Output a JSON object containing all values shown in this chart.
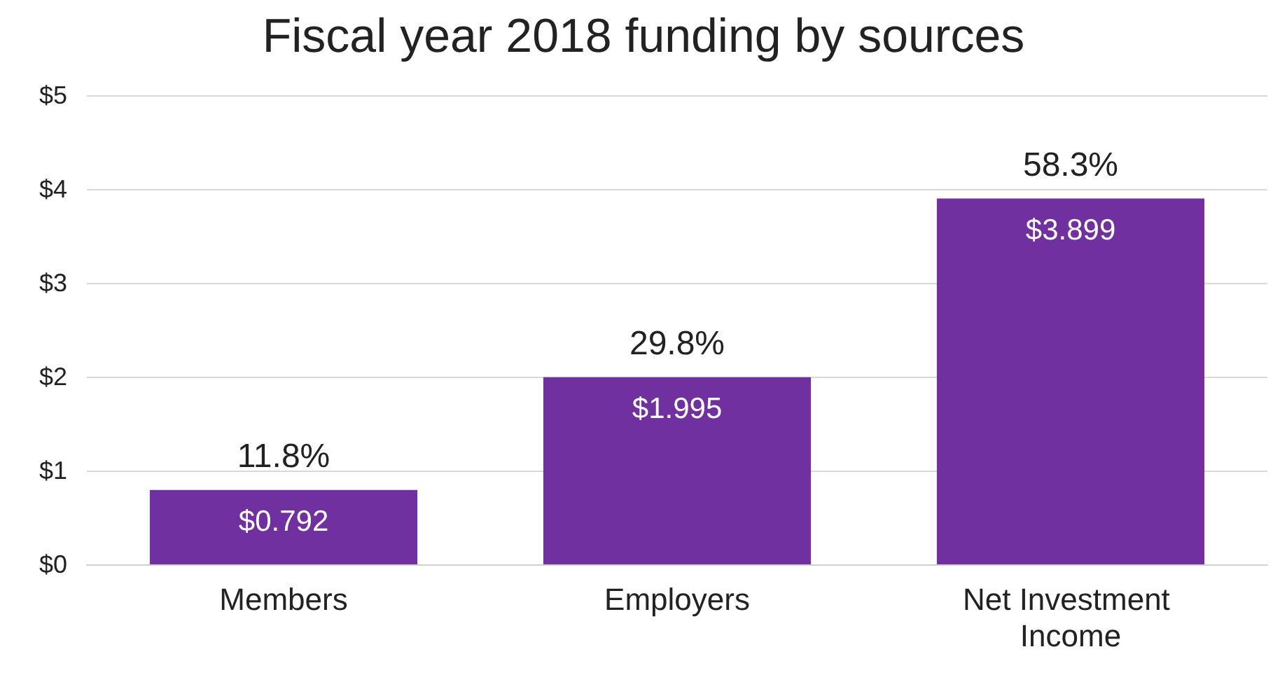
{
  "chart_data": {
    "type": "bar",
    "title": "Fiscal year 2018 funding by sources",
    "categories": [
      "Members",
      "Employers",
      "Net Investment Income"
    ],
    "values": [
      0.792,
      1.995,
      3.899
    ],
    "color": "#7030a0",
    "value_labels": [
      "$0.792",
      "$1.995",
      "$3.899"
    ],
    "annotations": [
      {
        "text": "11.8%",
        "x": "Members",
        "y": 0.792
      },
      {
        "text": "29.8%",
        "x": "Employers",
        "y": 1.995
      },
      {
        "text": "58.3%",
        "x": "Net Investment Income",
        "y": 3.899
      }
    ],
    "ylim": [
      0,
      5
    ],
    "yticks": [
      {
        "value": 0,
        "label": "$0"
      },
      {
        "value": 1,
        "label": "$1"
      },
      {
        "value": 2,
        "label": "$2"
      },
      {
        "value": 3,
        "label": "$3"
      },
      {
        "value": 4,
        "label": "$4"
      },
      {
        "value": 5,
        "label": "$5"
      }
    ],
    "grid": "y"
  }
}
